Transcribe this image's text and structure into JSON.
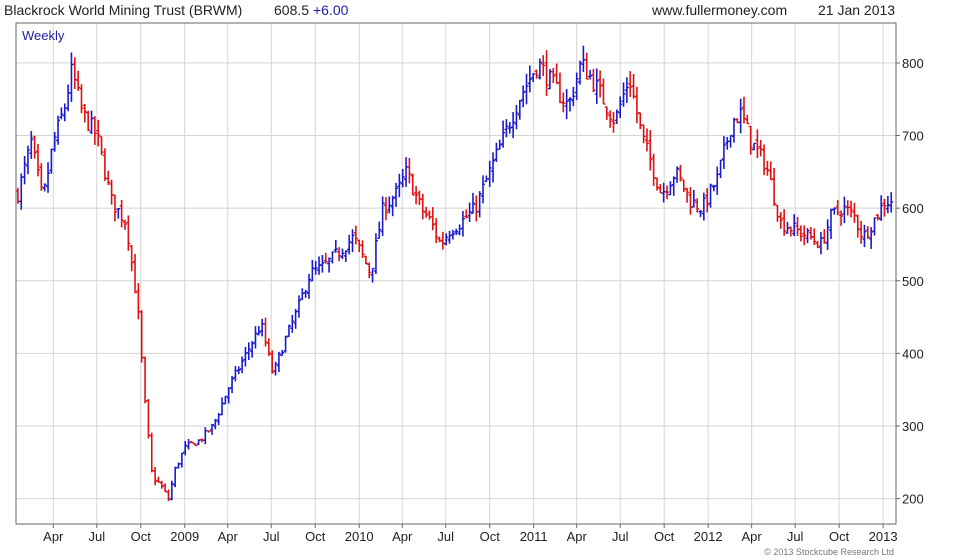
{
  "header": {
    "title": "Blackrock World Mining Trust (BRWM)",
    "price": "608.5",
    "change": "+6.00",
    "site": "www.fullermoney.com",
    "date": "21 Jan 2013"
  },
  "footer": {
    "copyright": "© 2013 Stockcube Research Ltd"
  },
  "colors": {
    "up": "#1a1acc",
    "down": "#dd1111",
    "grid": "#d4d4d4",
    "frame": "#666666",
    "change": "#1a1aa8"
  },
  "chart_data": {
    "type": "candlestick",
    "interval": "Weekly",
    "ylim": [
      165,
      855
    ],
    "yticks": [
      200,
      300,
      400,
      500,
      600,
      700,
      800
    ],
    "ytick_labels": [
      "200",
      "300",
      "400",
      "500",
      "600",
      "700",
      "800"
    ],
    "xlim": [
      "2008-01-14",
      "2013-01-28"
    ],
    "xticks": [
      "2008-04-01",
      "2008-07-01",
      "2008-10-01",
      "2009-01-01",
      "2009-04-01",
      "2009-07-01",
      "2009-10-01",
      "2010-01-01",
      "2010-04-01",
      "2010-07-01",
      "2010-10-01",
      "2011-01-01",
      "2011-04-01",
      "2011-07-01",
      "2011-10-01",
      "2012-01-01",
      "2012-04-01",
      "2012-07-01",
      "2012-10-01",
      "2013-01-01"
    ],
    "xtick_labels": [
      "Apr",
      "Jul",
      "Oct",
      "2009",
      "Apr",
      "Jul",
      "Oct",
      "2010",
      "Apr",
      "Jul",
      "Oct",
      "2011",
      "Apr",
      "Jul",
      "Oct",
      "2012",
      "Apr",
      "Jul",
      "Oct",
      "2013"
    ],
    "grid": true,
    "y_axis_side": "right",
    "path": [
      [
        "2008-01-18",
        620
      ],
      [
        "2008-02-15",
        690
      ],
      [
        "2008-03-10",
        610
      ],
      [
        "2008-04-01",
        690
      ],
      [
        "2008-04-25",
        740
      ],
      [
        "2008-05-10",
        790
      ],
      [
        "2008-06-01",
        730
      ],
      [
        "2008-07-01",
        700
      ],
      [
        "2008-08-01",
        610
      ],
      [
        "2008-09-01",
        580
      ],
      [
        "2008-09-25",
        460
      ],
      [
        "2008-10-10",
        330
      ],
      [
        "2008-10-25",
        230
      ],
      [
        "2008-11-10",
        220
      ],
      [
        "2008-11-28",
        200
      ],
      [
        "2008-12-12",
        240
      ],
      [
        "2009-01-01",
        270
      ],
      [
        "2009-02-01",
        280
      ],
      [
        "2009-03-01",
        300
      ],
      [
        "2009-04-01",
        350
      ],
      [
        "2009-05-10",
        400
      ],
      [
        "2009-06-10",
        440
      ],
      [
        "2009-07-05",
        370
      ],
      [
        "2009-07-25",
        410
      ],
      [
        "2009-08-25",
        460
      ],
      [
        "2009-09-20",
        510
      ],
      [
        "2009-10-20",
        520
      ],
      [
        "2009-11-20",
        540
      ],
      [
        "2009-12-20",
        560
      ],
      [
        "2010-01-25",
        510
      ],
      [
        "2010-02-20",
        600
      ],
      [
        "2010-03-20",
        620
      ],
      [
        "2010-04-10",
        650
      ],
      [
        "2010-05-10",
        600
      ],
      [
        "2010-06-01",
        580
      ],
      [
        "2010-06-20",
        550
      ],
      [
        "2010-07-10",
        570
      ],
      [
        "2010-08-01",
        580
      ],
      [
        "2010-09-01",
        600
      ],
      [
        "2010-10-01",
        650
      ],
      [
        "2010-11-01",
        700
      ],
      [
        "2010-12-01",
        750
      ],
      [
        "2011-01-10",
        800
      ],
      [
        "2011-02-10",
        770
      ],
      [
        "2011-03-15",
        740
      ],
      [
        "2011-04-10",
        800
      ],
      [
        "2011-05-10",
        770
      ],
      [
        "2011-06-20",
        720
      ],
      [
        "2011-07-20",
        780
      ],
      [
        "2011-08-15",
        700
      ],
      [
        "2011-09-05",
        660
      ],
      [
        "2011-09-25",
        620
      ],
      [
        "2011-10-25",
        650
      ],
      [
        "2011-11-25",
        610
      ],
      [
        "2011-12-20",
        600
      ],
      [
        "2012-01-20",
        640
      ],
      [
        "2012-02-20",
        720
      ],
      [
        "2012-03-10",
        730
      ],
      [
        "2012-04-01",
        690
      ],
      [
        "2012-05-01",
        660
      ],
      [
        "2012-06-01",
        580
      ],
      [
        "2012-07-01",
        570
      ],
      [
        "2012-08-01",
        560
      ],
      [
        "2012-08-25",
        550
      ],
      [
        "2012-09-15",
        590
      ],
      [
        "2012-10-10",
        600
      ],
      [
        "2012-11-01",
        590
      ],
      [
        "2012-11-20",
        560
      ],
      [
        "2012-12-10",
        580
      ],
      [
        "2013-01-05",
        610
      ],
      [
        "2013-01-21",
        608.5
      ]
    ]
  }
}
